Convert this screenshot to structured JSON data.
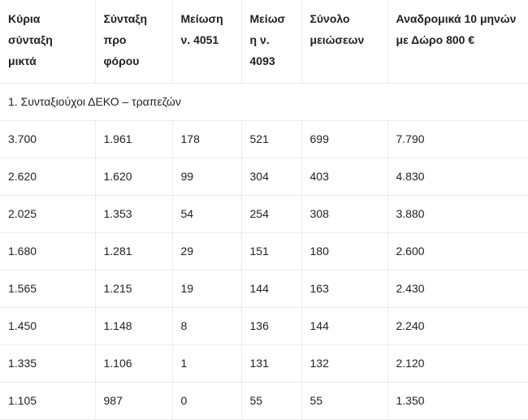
{
  "headers": [
    [
      "Κύρια",
      "σύνταξη",
      "μικτά"
    ],
    [
      "Σύνταξη",
      "προ",
      "φόρου"
    ],
    [
      "Μείωση",
      "ν. 4051"
    ],
    [
      "Μείωσ",
      "η ν.",
      "4093"
    ],
    [
      "Σύνολο",
      "μειώσεων"
    ],
    [
      "Αναδρομικά 10 μηνών",
      "με Δώρο 800 €"
    ]
  ],
  "section": "1. Συνταξιούχοι ΔΕΚΟ – τραπεζών",
  "rows": [
    [
      "3.700",
      "1.961",
      "178",
      "521",
      "699",
      "7.790"
    ],
    [
      "2.620",
      "1.620",
      "99",
      "304",
      "403",
      "4.830"
    ],
    [
      "2.025",
      "1.353",
      "54",
      "254",
      "308",
      "3.880"
    ],
    [
      "1.680",
      "1.281",
      "29",
      "151",
      "180",
      "2.600"
    ],
    [
      "1.565",
      "1.215",
      "19",
      "144",
      "163",
      "2.430"
    ],
    [
      "1.450",
      "1.148",
      "8",
      "136",
      "144",
      "2.240"
    ],
    [
      "1.335",
      "1.106",
      "1",
      "131",
      "132",
      "2.120"
    ],
    [
      "1.105",
      "987",
      "0",
      "55",
      "55",
      "1.350"
    ]
  ]
}
